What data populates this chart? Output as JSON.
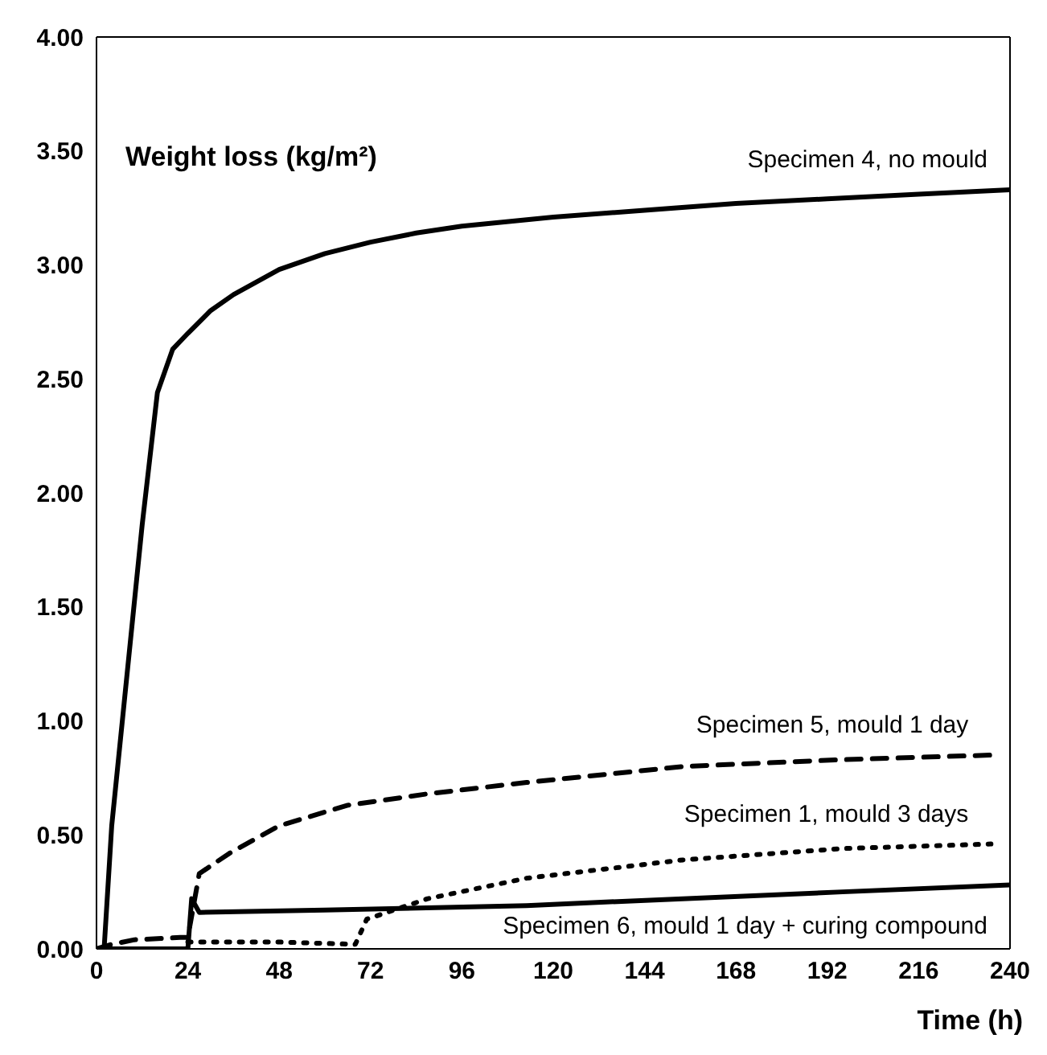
{
  "chart_data": {
    "type": "line",
    "ylabel": "Weight loss (kg/m²)",
    "xlabel": "Time (h)",
    "xlim": [
      0,
      240
    ],
    "xticks": [
      0,
      24,
      48,
      72,
      96,
      120,
      144,
      168,
      192,
      216,
      240
    ],
    "ylim": [
      0,
      4
    ],
    "yticks": [
      {
        "value": 0,
        "label": "0.00"
      },
      {
        "value": 0.5,
        "label": "0.50"
      },
      {
        "value": 1,
        "label": "1.00"
      },
      {
        "value": 1.5,
        "label": "1.50"
      },
      {
        "value": 2,
        "label": "2.00"
      },
      {
        "value": 2.5,
        "label": "2.50"
      },
      {
        "value": 3,
        "label": "3.00"
      },
      {
        "value": 3.5,
        "label": "3.50"
      },
      {
        "value": 4,
        "label": "4.00"
      }
    ],
    "grid": false,
    "legend": false,
    "marker": "none",
    "series": [
      {
        "name": "Specimen 4, no mould",
        "color": "#000000",
        "line_style": "solid",
        "x": [
          0,
          2,
          4,
          8,
          12,
          16,
          20,
          24,
          30,
          36,
          48,
          60,
          72,
          84,
          96,
          120,
          144,
          168,
          192,
          216,
          240
        ],
        "values": [
          0,
          0,
          0.54,
          1.2,
          1.86,
          2.44,
          2.63,
          2.7,
          2.8,
          2.87,
          2.98,
          3.05,
          3.1,
          3.14,
          3.17,
          3.21,
          3.24,
          3.27,
          3.29,
          3.31,
          3.33
        ]
      },
      {
        "name": "Specimen 5, mould 1 day",
        "color": "#000000",
        "line_style": "dashed",
        "x": [
          0,
          4,
          10,
          22,
          24,
          27,
          35,
          48,
          66,
          87,
          113,
          154,
          196,
          235
        ],
        "values": [
          0,
          0.02,
          0.04,
          0.05,
          0.05,
          0.33,
          0.42,
          0.54,
          0.63,
          0.68,
          0.73,
          0.8,
          0.83,
          0.85
        ]
      },
      {
        "name": "Specimen 1, mould 3 days",
        "color": "#000000",
        "line_style": "dotted",
        "x": [
          24,
          48,
          68,
          71,
          87,
          113,
          154,
          196,
          235
        ],
        "values": [
          0.03,
          0.03,
          0.02,
          0.13,
          0.22,
          0.31,
          0.39,
          0.44,
          0.46
        ]
      },
      {
        "name": "Specimen 6, mould 1 day + curing compound",
        "color": "#000000",
        "line_style": "solid",
        "x": [
          0,
          24,
          25,
          27,
          60,
          113,
          154,
          196,
          240
        ],
        "values": [
          0,
          0,
          0.22,
          0.16,
          0.17,
          0.19,
          0.22,
          0.25,
          0.28
        ]
      }
    ]
  }
}
